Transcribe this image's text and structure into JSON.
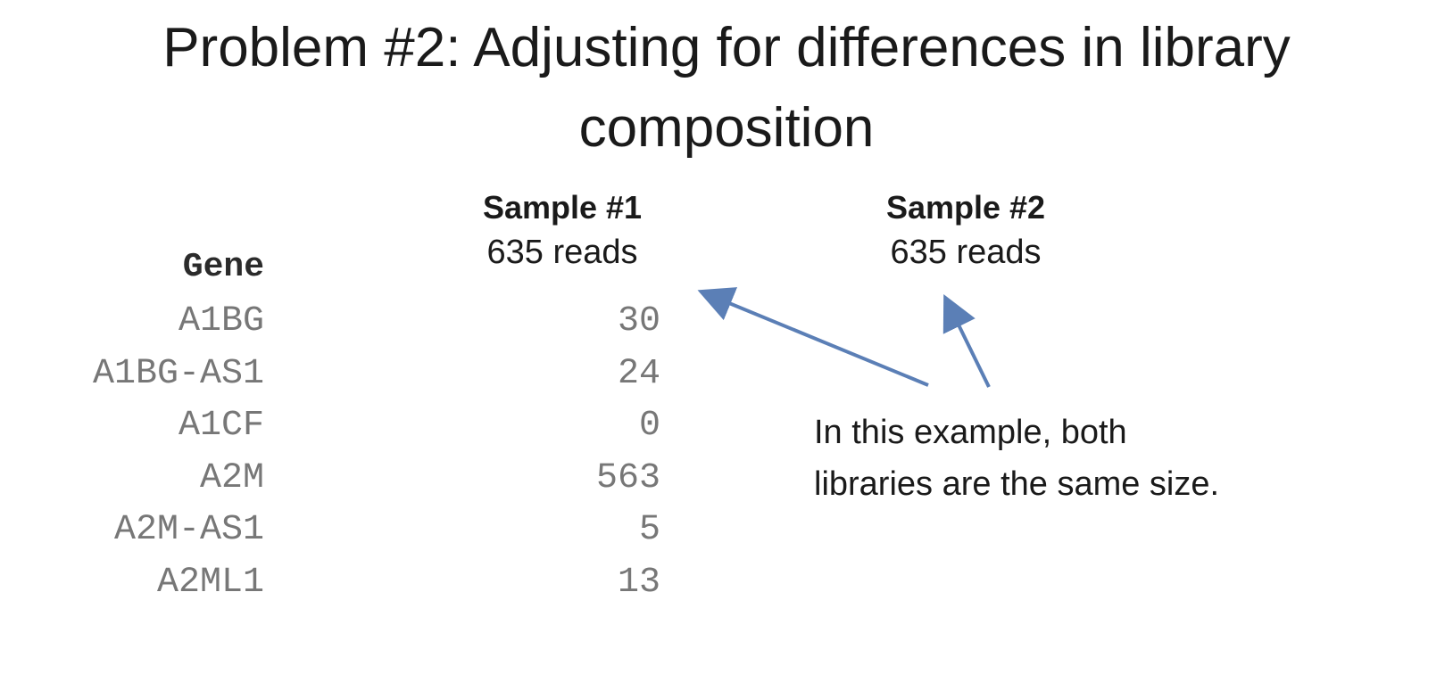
{
  "slide": {
    "title_line1": "Problem #2: Adjusting for differences in library",
    "title_line2": "composition"
  },
  "table": {
    "gene_header": "Gene",
    "samples": [
      {
        "name": "Sample #1",
        "reads": "635 reads"
      },
      {
        "name": "Sample #2",
        "reads": "635 reads"
      }
    ],
    "rows": [
      {
        "gene": "A1BG",
        "sample1": "30"
      },
      {
        "gene": "A1BG-AS1",
        "sample1": "24"
      },
      {
        "gene": "A1CF",
        "sample1": "0"
      },
      {
        "gene": "A2M",
        "sample1": "563"
      },
      {
        "gene": "A2M-AS1",
        "sample1": "5"
      },
      {
        "gene": "A2ML1",
        "sample1": "13"
      }
    ]
  },
  "annotation": {
    "line1": "In this example, both",
    "line2": "libraries are the same size."
  },
  "colors": {
    "arrow": "#5b7fb6"
  }
}
